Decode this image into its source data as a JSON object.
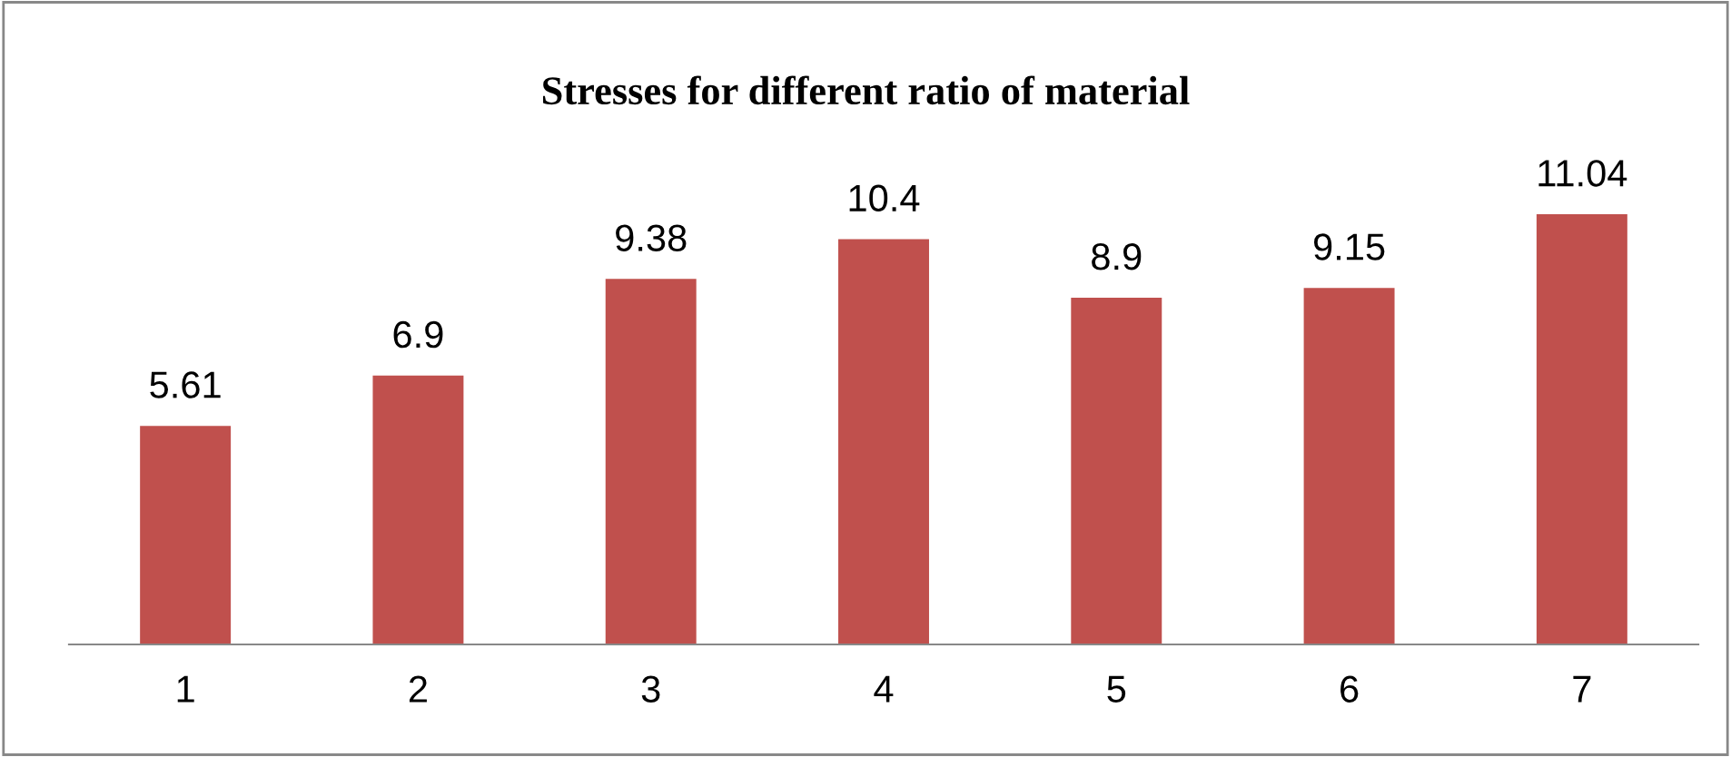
{
  "chart_data": {
    "type": "bar",
    "title": "Stresses for different ratio of material",
    "categories": [
      "1",
      "2",
      "3",
      "4",
      "5",
      "6",
      "7"
    ],
    "values": [
      5.61,
      6.9,
      9.38,
      10.4,
      8.9,
      9.15,
      11.04
    ],
    "color": "#c0504d",
    "data_labels": true,
    "grid": false,
    "legend": false
  }
}
